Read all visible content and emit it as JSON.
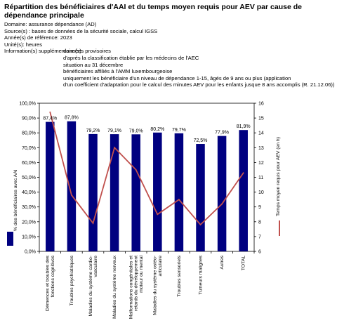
{
  "title": "Répartition des bénéficiaires d'AAI et du temps moyen requis pour AEV par cause de dépendance principale",
  "meta": {
    "domain_label": "Domaine: assurance dépendance (AD)",
    "source_label": "Source(s) : bases de données de la sécurité sociale, calcul IGSS",
    "year_label": "Année(s) de référence: 2023",
    "unit_label": "Unité(s): heures",
    "info_label": "Information(s) supplémentaire(s):",
    "info_lines": [
      "données provisoires",
      "d'après la classification établie par les médecins de l'AEC",
      "situation au 31 décembre",
      "bénéficiaires affiliés à l'AMM luxembourgeoise",
      "uniquement les bénéficiaire d'un niveau de dépendance 1-15, âgés de 9 ans ou plus (application",
      "d'un coefficient d'adaptation pour le calcul des minutes AEV pour les enfants jusque 8 ans accomplis (R. 21.12.06))"
    ]
  },
  "chart_data": {
    "type": "bar",
    "categories": [
      "Démences et troubles des fonctions cognitives",
      "Troubles psychiatriques",
      "Maladies du système cardio-vasculaire",
      "Maladies du système nerveux",
      "Malformations congénitales et retards du développement moteur ou mental",
      "Maladies du système ostéo-articulaire",
      "Troubles sensoriels",
      "Tumeurs malignes",
      "Autres",
      "TOTAL"
    ],
    "series": [
      {
        "name": "% des bénéficiaires avec AAI",
        "type": "bar",
        "axis": "left",
        "values": [
          87.4,
          87.8,
          79.2,
          79.1,
          79.0,
          80.2,
          79.7,
          72.5,
          77.9,
          81.9
        ],
        "labels": [
          "87,4%",
          "87,8%",
          "79,2%",
          "79,1%",
          "79,0%",
          "80,2%",
          "79,7%",
          "72,5%",
          "77,9%",
          "81,9%"
        ],
        "color": "#000080"
      },
      {
        "name": "Temps moyen requis pour AEV (en h)",
        "type": "line",
        "axis": "right",
        "values": [
          15.4,
          9.8,
          7.9,
          13.0,
          11.5,
          8.5,
          9.5,
          7.8,
          9.2,
          11.3
        ],
        "color": "#c0504d"
      }
    ],
    "y_left": {
      "label": "% des bénéficiaires avec AAI",
      "ticks": [
        "0,0%",
        "10,0%",
        "20,0%",
        "30,0%",
        "40,0%",
        "50,0%",
        "60,0%",
        "70,0%",
        "80,0%",
        "90,0%",
        "100,0%"
      ],
      "range": [
        0,
        100
      ]
    },
    "y_right": {
      "label": "Temps moyen requis pour AEV (en h)",
      "ticks": [
        "6",
        "7",
        "8",
        "9",
        "10",
        "11",
        "12",
        "13",
        "14",
        "15",
        "16"
      ],
      "range": [
        6,
        16
      ]
    },
    "grid": false,
    "legend": "left and right of plot"
  }
}
